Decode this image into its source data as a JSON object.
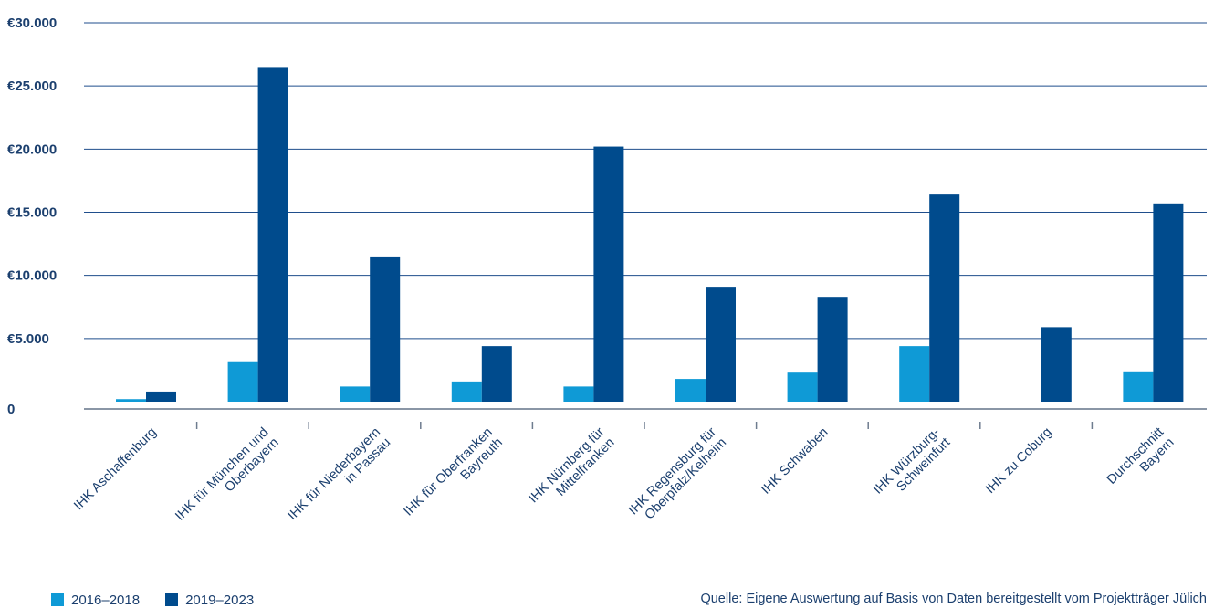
{
  "chart_data": {
    "type": "bar",
    "categories": [
      "IHK Aschaffenburg",
      "IHK für München und\nOberbayern",
      "IHK für Niederbayern\nin Passau",
      "IHK für Oberfranken\nBayreuth",
      "IHK Nürnberg für\nMittelfranken",
      "IHK Regensburg für\nOberpfalz/Kelheim",
      "IHK Schwaben",
      "IHK Würzburg-\nSchweinfurt",
      "IHK zu Coburg",
      "Durchschnitt\nBayern"
    ],
    "series": [
      {
        "name": "2016–2018",
        "color": "#0f9ad6",
        "values": [
          200,
          3200,
          1200,
          1600,
          1200,
          1800,
          2300,
          4400,
          0,
          2400
        ]
      },
      {
        "name": "2019–2023",
        "color": "#004b8d",
        "values": [
          800,
          26500,
          11500,
          4400,
          20200,
          9100,
          8300,
          16400,
          5900,
          15700
        ]
      }
    ],
    "yticks": [
      0,
      5000,
      10000,
      15000,
      20000,
      25000,
      30000
    ],
    "ytick_labels": [
      "0",
      "€5.000",
      "€10.000",
      "€15.000",
      "€20.000",
      "€25.000",
      "€30.000"
    ],
    "ylim": [
      0,
      30000
    ],
    "grid": true,
    "legend_position": "bottom-left",
    "source": "Quelle: Eigene Auswertung auf Basis von Daten bereitgestellt vom Projektträger Jülich"
  }
}
